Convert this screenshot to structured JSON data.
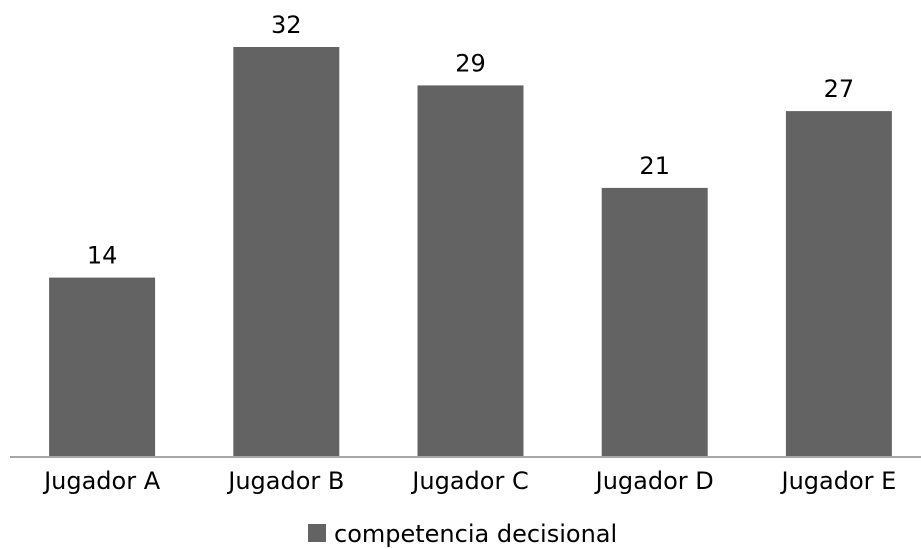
{
  "chart_data": {
    "type": "bar",
    "categories": [
      "Jugador A",
      "Jugador B",
      "Jugador C",
      "Jugador D",
      "Jugador E"
    ],
    "series": [
      {
        "name": "competencia decisional",
        "values": [
          14,
          32,
          29,
          21,
          27
        ],
        "color": "#636363"
      }
    ],
    "data_labels": [
      "14",
      "32",
      "29",
      "21",
      "27"
    ],
    "ylim": [
      0,
      35
    ],
    "grid": false,
    "y_axis_visible": false,
    "legend_position": "bottom",
    "axis_color": "#a6a6a6"
  }
}
